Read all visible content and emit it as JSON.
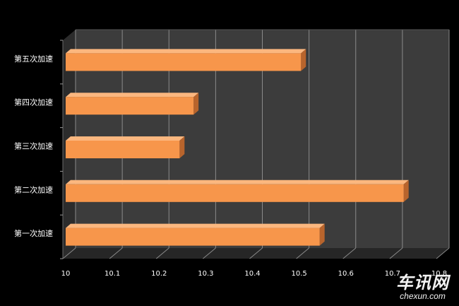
{
  "chart_data": {
    "type": "bar",
    "orientation": "horizontal",
    "categories": [
      "第一次加速",
      "第二次加速",
      "第三次加速",
      "第四次加速",
      "第五次加速"
    ],
    "values": [
      10.55,
      10.73,
      10.25,
      10.28,
      10.51
    ],
    "xlim": [
      10,
      10.8
    ],
    "xticks": [
      "10",
      "10.1",
      "10.2",
      "10.3",
      "10.4",
      "10.5",
      "10.6",
      "10.7",
      "10.8"
    ],
    "title": "",
    "xlabel": "",
    "ylabel": "",
    "grid": true,
    "three_d": true
  },
  "colors": {
    "background": "#000000",
    "plot_wall": "#3c3c3c",
    "plot_floor": "#262626",
    "gridline": "#8a8a8a",
    "bar_front": "#f7964b",
    "bar_top": "#fbb77f",
    "bar_side": "#b8642c",
    "text": "#ffffff"
  },
  "watermark": {
    "main": "车讯网",
    "sub": "chexun.com"
  }
}
